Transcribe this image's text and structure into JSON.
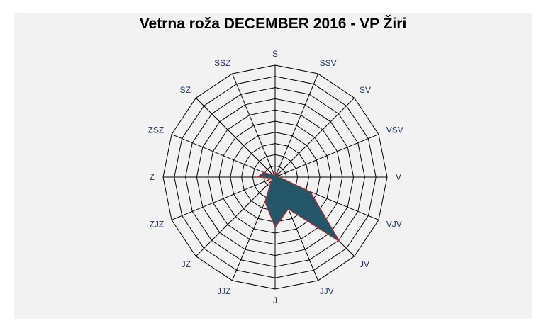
{
  "chart_data": {
    "type": "radar",
    "title": "Vetrna roža DECEMBER 2016 - VP Žiri",
    "categories": [
      "S",
      "SSV",
      "SV",
      "VSV",
      "V",
      "VJV",
      "JV",
      "JJV",
      "J",
      "JJZ",
      "JZ",
      "ZJZ",
      "Z",
      "ZSZ",
      "SZ",
      "SSZ"
    ],
    "series": [
      {
        "values": [
          0.4,
          0.4,
          0.5,
          0.3,
          0.4,
          3.4,
          8.2,
          3.1,
          4.5,
          2.4,
          0.5,
          0.3,
          1.6,
          1.1,
          0.3,
          0.2
        ]
      }
    ],
    "rlim": [
      0,
      10
    ],
    "grid": true,
    "colors": {
      "fill": "#24566a",
      "stroke": "#e02424",
      "grid": "#000000",
      "label": "#1f3864"
    }
  }
}
